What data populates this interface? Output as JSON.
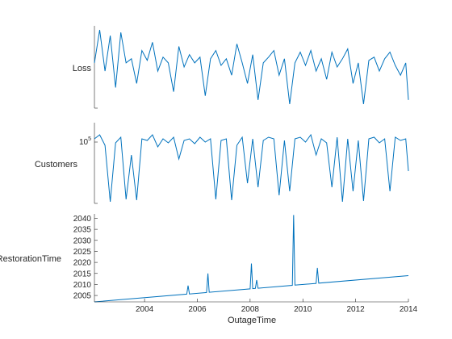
{
  "chart_data": {
    "type": "line",
    "color": "#0072BD",
    "shared_x": {
      "label": "OutageTime",
      "range": [
        2002.1,
        2014.0
      ],
      "ticks": [
        2004,
        2006,
        2008,
        2010,
        2012,
        2014
      ],
      "tick_labels": [
        "2004",
        "2006",
        "2008",
        "2010",
        "2012",
        "2014"
      ]
    },
    "panels": [
      {
        "ylabel": "Loss",
        "yscale": "linear",
        "yrange": [
          0,
          1
        ],
        "ticks": [],
        "tick_labels": [],
        "series": {
          "x": [
            2002.1,
            2002.3,
            2002.5,
            2002.7,
            2002.9,
            2003.1,
            2003.3,
            2003.5,
            2003.7,
            2003.9,
            2004.1,
            2004.3,
            2004.5,
            2004.7,
            2004.9,
            2005.1,
            2005.3,
            2005.5,
            2005.7,
            2005.9,
            2006.1,
            2006.3,
            2006.5,
            2006.7,
            2006.9,
            2007.1,
            2007.3,
            2007.5,
            2007.7,
            2007.9,
            2008.1,
            2008.3,
            2008.5,
            2008.7,
            2008.9,
            2009.1,
            2009.3,
            2009.5,
            2009.7,
            2009.9,
            2010.1,
            2010.3,
            2010.5,
            2010.7,
            2010.9,
            2011.1,
            2011.3,
            2011.5,
            2011.7,
            2011.9,
            2012.1,
            2012.3,
            2012.5,
            2012.7,
            2012.9,
            2013.1,
            2013.3,
            2013.5,
            2013.7,
            2013.9,
            2014.0
          ],
          "y": [
            0.55,
            0.95,
            0.45,
            0.88,
            0.25,
            0.92,
            0.55,
            0.6,
            0.3,
            0.7,
            0.58,
            0.8,
            0.45,
            0.62,
            0.55,
            0.2,
            0.75,
            0.5,
            0.65,
            0.55,
            0.62,
            0.15,
            0.6,
            0.7,
            0.52,
            0.6,
            0.4,
            0.78,
            0.55,
            0.3,
            0.65,
            0.1,
            0.55,
            0.62,
            0.7,
            0.4,
            0.6,
            0.05,
            0.55,
            0.68,
            0.52,
            0.7,
            0.45,
            0.6,
            0.35,
            0.68,
            0.5,
            0.6,
            0.72,
            0.3,
            0.55,
            0.05,
            0.58,
            0.62,
            0.45,
            0.6,
            0.68,
            0.52,
            0.4,
            0.55,
            0.1
          ]
        }
      },
      {
        "ylabel": "Customers",
        "yscale": "log",
        "yrange": [
          0,
          1
        ],
        "ticks": [
          0.8
        ],
        "tick_labels": [
          "10^5"
        ],
        "series": {
          "x": [
            2002.1,
            2002.3,
            2002.5,
            2002.7,
            2002.9,
            2003.1,
            2003.3,
            2003.5,
            2003.7,
            2003.9,
            2004.1,
            2004.3,
            2004.5,
            2004.7,
            2004.9,
            2005.1,
            2005.3,
            2005.5,
            2005.7,
            2005.9,
            2006.1,
            2006.3,
            2006.5,
            2006.7,
            2006.9,
            2007.1,
            2007.3,
            2007.5,
            2007.7,
            2007.9,
            2008.1,
            2008.3,
            2008.5,
            2008.7,
            2008.9,
            2009.1,
            2009.3,
            2009.5,
            2009.7,
            2009.9,
            2010.1,
            2010.3,
            2010.5,
            2010.7,
            2010.9,
            2011.1,
            2011.3,
            2011.5,
            2011.7,
            2011.9,
            2012.1,
            2012.3,
            2012.5,
            2012.7,
            2012.9,
            2013.1,
            2013.3,
            2013.5,
            2013.7,
            2013.9,
            2014.0
          ],
          "y": [
            0.8,
            0.85,
            0.72,
            0.02,
            0.75,
            0.82,
            0.05,
            0.6,
            0.04,
            0.8,
            0.78,
            0.85,
            0.7,
            0.8,
            0.75,
            0.82,
            0.55,
            0.78,
            0.8,
            0.74,
            0.82,
            0.76,
            0.8,
            0.05,
            0.78,
            0.8,
            0.04,
            0.72,
            0.82,
            0.25,
            0.8,
            0.2,
            0.78,
            0.82,
            0.8,
            0.1,
            0.78,
            0.15,
            0.8,
            0.82,
            0.76,
            0.85,
            0.6,
            0.8,
            0.75,
            0.2,
            0.82,
            0.02,
            0.8,
            0.15,
            0.78,
            0.03,
            0.8,
            0.82,
            0.75,
            0.8,
            0.15,
            0.82,
            0.78,
            0.8,
            0.4
          ]
        }
      },
      {
        "ylabel": "RestorationTime",
        "yscale": "linear",
        "yrange": [
          2002.1,
          2042
        ],
        "ticks": [
          2005,
          2010,
          2015,
          2020,
          2025,
          2030,
          2035,
          2040
        ],
        "tick_labels": [
          "2005",
          "2010",
          "2015",
          "2020",
          "2025",
          "2030",
          "2035",
          "2040"
        ],
        "series": {
          "x": [
            2002.1,
            2005.6,
            2005.65,
            2005.7,
            2006.35,
            2006.4,
            2006.45,
            2008.0,
            2008.05,
            2008.1,
            2008.2,
            2008.25,
            2008.3,
            2009.6,
            2009.65,
            2009.7,
            2010.5,
            2010.55,
            2010.6,
            2014.0
          ],
          "y": [
            2002.1,
            2005.6,
            2009.5,
            2005.7,
            2006.35,
            2015.0,
            2006.45,
            2008.0,
            2019.5,
            2008.1,
            2008.2,
            2012.0,
            2008.3,
            2009.6,
            2041.5,
            2009.7,
            2010.5,
            2017.5,
            2010.6,
            2014.0
          ]
        }
      }
    ]
  }
}
